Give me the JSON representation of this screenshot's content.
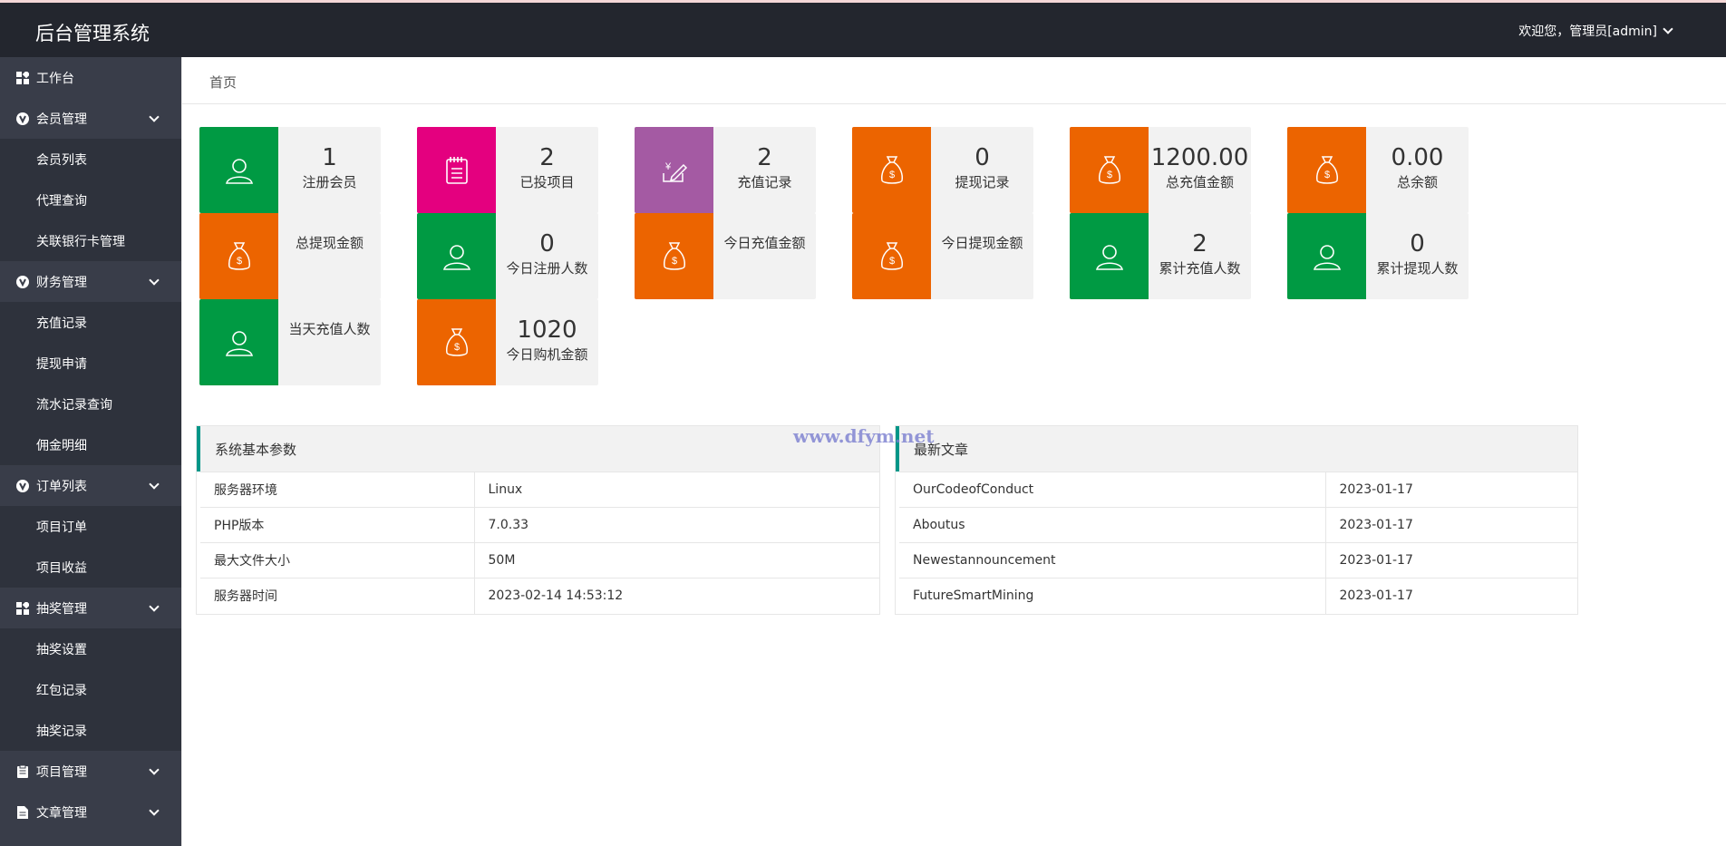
{
  "header": {
    "title": "后台管理系统",
    "user": "欢迎您，管理员[admin]"
  },
  "sidebar": {
    "workbench": "工作台",
    "groups": [
      {
        "label": "会员管理",
        "items": [
          "会员列表",
          "代理查询",
          "关联银行卡管理"
        ]
      },
      {
        "label": "财务管理",
        "items": [
          "充值记录",
          "提现申请",
          "流水记录查询",
          "佣金明细"
        ]
      },
      {
        "label": "订单列表",
        "items": [
          "项目订单",
          "项目收益"
        ]
      },
      {
        "label": "抽奖管理",
        "items": [
          "抽奖设置",
          "红包记录",
          "抽奖记录"
        ]
      },
      {
        "label": "项目管理",
        "items": []
      },
      {
        "label": "文章管理",
        "items": []
      }
    ]
  },
  "tabs": {
    "home": "首页"
  },
  "stats": [
    {
      "value": "1",
      "label": "注册会员",
      "color": "#009a43",
      "icon": "user-icon"
    },
    {
      "value": "2",
      "label": "已投项目",
      "color": "#e4007f",
      "icon": "clipboard-icon"
    },
    {
      "value": "2",
      "label": "充值记录",
      "color": "#a45aa3",
      "icon": "yen-edit-icon"
    },
    {
      "value": "0",
      "label": "提现记录",
      "color": "#ec6400",
      "icon": "money-bag-icon"
    },
    {
      "value": "1200.00",
      "label": "总充值金额",
      "color": "#ec6400",
      "icon": "money-bag-icon"
    },
    {
      "value": "0.00",
      "label": "总余额",
      "color": "#ec6400",
      "icon": "money-bag-icon"
    },
    {
      "value": "",
      "label": "总提现金额",
      "color": "#ec6400",
      "icon": "money-bag-icon"
    },
    {
      "value": "0",
      "label": "今日注册人数",
      "color": "#009a43",
      "icon": "user-icon"
    },
    {
      "value": "",
      "label": "今日充值金额",
      "color": "#ec6400",
      "icon": "money-bag-icon"
    },
    {
      "value": "",
      "label": "今日提现金额",
      "color": "#ec6400",
      "icon": "money-bag-icon"
    },
    {
      "value": "2",
      "label": "累计充值人数",
      "color": "#009a43",
      "icon": "user-icon"
    },
    {
      "value": "0",
      "label": "累计提现人数",
      "color": "#009a43",
      "icon": "user-icon"
    },
    {
      "value": "",
      "label": "当天充值人数",
      "color": "#009a43",
      "icon": "user-icon"
    },
    {
      "value": "1020",
      "label": "今日购机金额",
      "color": "#ec6400",
      "icon": "money-bag-icon"
    }
  ],
  "system": {
    "title": "系统基本参数",
    "rows": [
      [
        "服务器环境",
        "Linux"
      ],
      [
        "PHP版本",
        "7.0.33"
      ],
      [
        "最大文件大小",
        "50M"
      ],
      [
        "服务器时间",
        "2023-02-14 14:53:12"
      ]
    ]
  },
  "articles": {
    "title": "最新文章",
    "rows": [
      [
        "OurCodeofConduct",
        "2023-01-17"
      ],
      [
        "Aboutus",
        "2023-01-17"
      ],
      [
        "Newestannouncement",
        "2023-01-17"
      ],
      [
        "FutureSmartMining",
        "2023-01-17"
      ]
    ]
  },
  "watermark": "www.dfym.net"
}
